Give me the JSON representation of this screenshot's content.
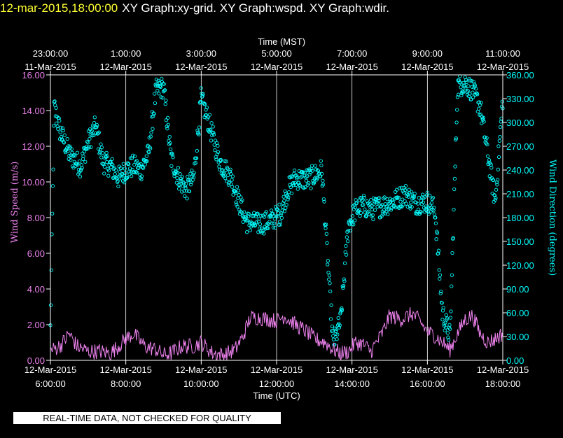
{
  "header": {
    "timestamp": "12-mar-2015,18:00:00",
    "title": "XY Graph:xy-grid.  XY Graph:wspd.  XY Graph:wdir."
  },
  "notice": "REAL-TIME DATA, NOT CHECKED FOR QUALITY",
  "colors": {
    "wind_speed": "#ee82ee",
    "wind_direction": "#00ffff",
    "grid": "#ffffff",
    "header_time": "#ffff33"
  },
  "chart_data": {
    "type": "scatter",
    "top_axis": {
      "label": "Time (MST)",
      "ticks": [
        {
          "hours": 0,
          "time": "23:00:00",
          "date": "11-Mar-2015"
        },
        {
          "hours": 2,
          "time": "1:00:00",
          "date": "12-Mar-2015"
        },
        {
          "hours": 4,
          "time": "3:00:00",
          "date": "12-Mar-2015"
        },
        {
          "hours": 6,
          "time": "5:00:00",
          "date": "12-Mar-2015"
        },
        {
          "hours": 8,
          "time": "7:00:00",
          "date": "12-Mar-2015"
        },
        {
          "hours": 10,
          "time": "9:00:00",
          "date": "12-Mar-2015"
        },
        {
          "hours": 12,
          "time": "11:00:00",
          "date": "12-Mar-2015"
        }
      ]
    },
    "bottom_axis": {
      "label": "Time (UTC)",
      "ticks": [
        {
          "hours": 0,
          "date": "12-Mar-2015",
          "time": "6:00:00"
        },
        {
          "hours": 2,
          "date": "12-Mar-2015",
          "time": "8:00:00"
        },
        {
          "hours": 4,
          "date": "12-Mar-2015",
          "time": "10:00:00"
        },
        {
          "hours": 6,
          "date": "12-Mar-2015",
          "time": "12:00:00"
        },
        {
          "hours": 8,
          "date": "12-Mar-2015",
          "time": "14:00:00"
        },
        {
          "hours": 10,
          "date": "12-Mar-2015",
          "time": "16:00:00"
        },
        {
          "hours": 12,
          "date": "12-Mar-2015",
          "time": "18:00:00"
        }
      ]
    },
    "xlim_hours": [
      0,
      12
    ],
    "left_axis": {
      "label": "Wind Speed (m/s)",
      "ylim": [
        0,
        16
      ],
      "ticks": [
        "0.00",
        "2.00",
        "4.00",
        "6.00",
        "8.00",
        "10.00",
        "12.00",
        "14.00",
        "16.00"
      ]
    },
    "right_axis": {
      "label": "Wind Direction (degrees)",
      "ylim": [
        0,
        360
      ],
      "ticks": [
        "0.00",
        "30.00",
        "60.00",
        "90.00",
        "120.00",
        "150.00",
        "180.00",
        "210.00",
        "240.00",
        "270.00",
        "300.00",
        "330.00",
        "360.00"
      ]
    },
    "grid": "vertical lines at each bottom tick",
    "series": [
      {
        "axis": "left",
        "style": "line",
        "keypoints": [
          [
            0,
            0.5
          ],
          [
            0.3,
            0.9
          ],
          [
            0.5,
            1.5
          ],
          [
            0.7,
            0.8
          ],
          [
            1.0,
            0.5
          ],
          [
            1.3,
            0.5
          ],
          [
            1.6,
            0.4
          ],
          [
            1.8,
            0.8
          ],
          [
            2.0,
            1.2
          ],
          [
            2.2,
            1.5
          ],
          [
            2.5,
            0.8
          ],
          [
            2.8,
            0.6
          ],
          [
            3.0,
            0.3
          ],
          [
            3.2,
            0.4
          ],
          [
            3.5,
            0.8
          ],
          [
            3.8,
            0.8
          ],
          [
            4.0,
            1.0
          ],
          [
            4.3,
            0.4
          ],
          [
            4.6,
            0.3
          ],
          [
            4.9,
            0.6
          ],
          [
            5.1,
            1.3
          ],
          [
            5.3,
            2.4
          ],
          [
            5.5,
            2.4
          ],
          [
            5.8,
            2.3
          ],
          [
            6.0,
            2.2
          ],
          [
            6.2,
            2.5
          ],
          [
            6.5,
            2.0
          ],
          [
            6.8,
            1.6
          ],
          [
            7.0,
            1.2
          ],
          [
            7.3,
            1.0
          ],
          [
            7.5,
            0.6
          ],
          [
            7.7,
            0.4
          ],
          [
            7.9,
            0.5
          ],
          [
            8.1,
            1.0
          ],
          [
            8.3,
            0.9
          ],
          [
            8.5,
            0.5
          ],
          [
            8.8,
            1.5
          ],
          [
            9.0,
            2.5
          ],
          [
            9.3,
            2.3
          ],
          [
            9.6,
            2.6
          ],
          [
            9.8,
            2.2
          ],
          [
            10.0,
            1.6
          ],
          [
            10.2,
            1.4
          ],
          [
            10.4,
            1.0
          ],
          [
            10.6,
            0.6
          ],
          [
            10.8,
            1.5
          ],
          [
            11.0,
            2.3
          ],
          [
            11.2,
            2.5
          ],
          [
            11.4,
            1.5
          ],
          [
            11.6,
            1.0
          ],
          [
            11.8,
            1.2
          ],
          [
            12.0,
            1.5
          ]
        ]
      },
      {
        "axis": "right",
        "style": "circle-markers",
        "keypoints": [
          [
            0,
            40
          ],
          [
            0.1,
            320
          ],
          [
            0.25,
            290
          ],
          [
            0.5,
            260
          ],
          [
            0.8,
            245
          ],
          [
            1.0,
            275
          ],
          [
            1.2,
            295
          ],
          [
            1.4,
            250
          ],
          [
            1.6,
            245
          ],
          [
            1.8,
            230
          ],
          [
            2.0,
            240
          ],
          [
            2.2,
            245
          ],
          [
            2.4,
            240
          ],
          [
            2.6,
            260
          ],
          [
            2.8,
            340
          ],
          [
            3.0,
            345
          ],
          [
            3.2,
            255
          ],
          [
            3.4,
            230
          ],
          [
            3.6,
            215
          ],
          [
            3.8,
            230
          ],
          [
            4.0,
            330
          ],
          [
            4.2,
            300
          ],
          [
            4.5,
            250
          ],
          [
            4.8,
            230
          ],
          [
            5.0,
            200
          ],
          [
            5.2,
            175
          ],
          [
            5.5,
            172
          ],
          [
            5.8,
            175
          ],
          [
            6.1,
            185
          ],
          [
            6.3,
            215
          ],
          [
            6.5,
            230
          ],
          [
            6.7,
            228
          ],
          [
            6.9,
            230
          ],
          [
            7.2,
            240
          ],
          [
            7.5,
            20
          ],
          [
            7.7,
            50
          ],
          [
            7.9,
            170
          ],
          [
            8.1,
            190
          ],
          [
            8.3,
            195
          ],
          [
            8.5,
            190
          ],
          [
            8.8,
            195
          ],
          [
            9.1,
            200
          ],
          [
            9.4,
            210
          ],
          [
            9.7,
            198
          ],
          [
            10.0,
            200
          ],
          [
            10.2,
            190
          ],
          [
            10.4,
            60
          ],
          [
            10.6,
            30
          ],
          [
            10.8,
            345
          ],
          [
            11.0,
            350
          ],
          [
            11.2,
            340
          ],
          [
            11.4,
            320
          ],
          [
            11.6,
            260
          ],
          [
            11.8,
            200
          ],
          [
            12.0,
            330
          ]
        ]
      }
    ]
  }
}
